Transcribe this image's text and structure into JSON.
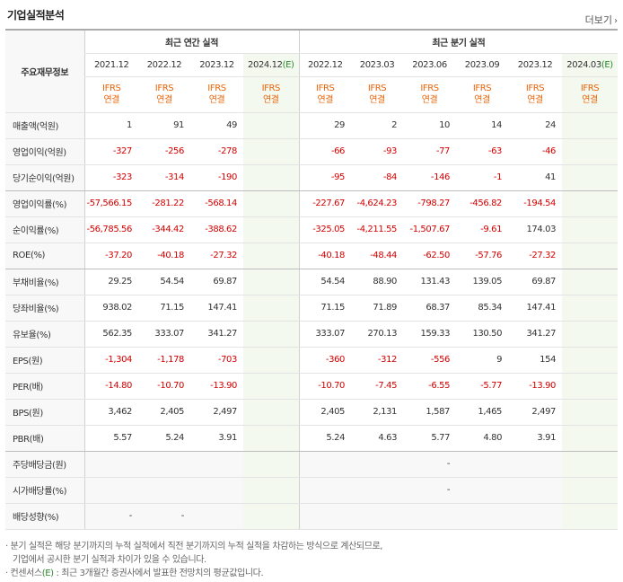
{
  "title": "기업실적분석",
  "more_label": "더보기",
  "more_arrow": "›",
  "row_header_label": "주요재무정보",
  "annual_group": "최근 연간 실적",
  "quarter_group": "최근 분기 실적",
  "annual_periods": [
    "2021.12",
    "2022.12",
    "2023.12",
    "2024.12"
  ],
  "quarter_periods": [
    "2022.12",
    "2023.03",
    "2023.06",
    "2023.09",
    "2023.12",
    "2024.03"
  ],
  "estimate_mark": "(E)",
  "ifrs_line1": "IFRS",
  "ifrs_line2": "연결",
  "rows": [
    {
      "label": "매출액(억원)",
      "annual": [
        "1",
        "91",
        "49",
        ""
      ],
      "quarter": [
        "29",
        "2",
        "10",
        "14",
        "24",
        ""
      ]
    },
    {
      "label": "영업이익(억원)",
      "annual": [
        "-327",
        "-256",
        "-278",
        ""
      ],
      "quarter": [
        "-66",
        "-93",
        "-77",
        "-63",
        "-46",
        ""
      ]
    },
    {
      "label": "당기순이익(억원)",
      "annual": [
        "-323",
        "-314",
        "-190",
        ""
      ],
      "quarter": [
        "-95",
        "-84",
        "-146",
        "-1",
        "41",
        ""
      ]
    },
    {
      "label": "영업이익률(%)",
      "annual": [
        "-57,566.15",
        "-281.22",
        "-568.14",
        ""
      ],
      "quarter": [
        "-227.67",
        "-4,624.23",
        "-798.27",
        "-456.82",
        "-194.54",
        ""
      ]
    },
    {
      "label": "순이익률(%)",
      "annual": [
        "-56,785.56",
        "-344.42",
        "-388.62",
        ""
      ],
      "quarter": [
        "-325.05",
        "-4,211.55",
        "-1,507.67",
        "-9.61",
        "174.03",
        ""
      ]
    },
    {
      "label": "ROE(%)",
      "annual": [
        "-37.20",
        "-40.18",
        "-27.32",
        ""
      ],
      "quarter": [
        "-40.18",
        "-48.44",
        "-62.50",
        "-57.76",
        "-27.32",
        ""
      ]
    },
    {
      "label": "부채비율(%)",
      "annual": [
        "29.25",
        "54.54",
        "69.87",
        ""
      ],
      "quarter": [
        "54.54",
        "88.90",
        "131.43",
        "139.05",
        "69.87",
        ""
      ]
    },
    {
      "label": "당좌비율(%)",
      "annual": [
        "938.02",
        "71.15",
        "147.41",
        ""
      ],
      "quarter": [
        "71.15",
        "71.89",
        "68.37",
        "85.34",
        "147.41",
        ""
      ]
    },
    {
      "label": "유보율(%)",
      "annual": [
        "562.35",
        "333.07",
        "341.27",
        ""
      ],
      "quarter": [
        "333.07",
        "270.13",
        "159.33",
        "130.50",
        "341.27",
        ""
      ]
    },
    {
      "label": "EPS(원)",
      "annual": [
        "-1,304",
        "-1,178",
        "-703",
        ""
      ],
      "quarter": [
        "-360",
        "-312",
        "-556",
        "9",
        "154",
        ""
      ]
    },
    {
      "label": "PER(배)",
      "annual": [
        "-14.80",
        "-10.70",
        "-13.90",
        ""
      ],
      "quarter": [
        "-10.70",
        "-7.45",
        "-6.55",
        "-5.77",
        "-13.90",
        ""
      ]
    },
    {
      "label": "BPS(원)",
      "annual": [
        "3,462",
        "2,405",
        "2,497",
        ""
      ],
      "quarter": [
        "2,405",
        "2,131",
        "1,587",
        "1,465",
        "2,497",
        ""
      ]
    },
    {
      "label": "PBR(배)",
      "annual": [
        "5.57",
        "5.24",
        "3.91",
        ""
      ],
      "quarter": [
        "5.24",
        "4.63",
        "5.77",
        "4.80",
        "3.91",
        ""
      ]
    },
    {
      "label": "주당배당금(원)",
      "annual": [
        "",
        "",
        "",
        ""
      ],
      "quarter": [
        "",
        "",
        "-",
        "",
        "",
        ""
      ]
    },
    {
      "label": "시가배당률(%)",
      "annual": [
        "",
        "",
        "",
        ""
      ],
      "quarter": [
        "",
        "",
        "-",
        "",
        "",
        ""
      ]
    },
    {
      "label": "배당성향(%)",
      "annual": [
        "-",
        "-",
        "",
        ""
      ],
      "quarter": [
        "",
        "",
        "",
        "",
        "",
        ""
      ]
    }
  ],
  "notes": {
    "line1": "· 분기 실적은 해당 분기까지의 누적 실적에서 직전 분기까지의 누적 실적을 차감하는 방식으로 계산되므로,",
    "line2": "기업에서 공시한 분기 실적과 차이가 있을 수 있습니다.",
    "line3_prefix": "· 컨센서스",
    "line3_mark": "(E)",
    "line3_suffix": " : 최근 3개월간 증권사에서 발표한 전망치의 평균값입니다."
  },
  "colors": {
    "negative": "#d40000",
    "ifrs": "#e8650a",
    "estimate": "#2b8a2b",
    "estimate_bg": "#f3f9ef"
  }
}
